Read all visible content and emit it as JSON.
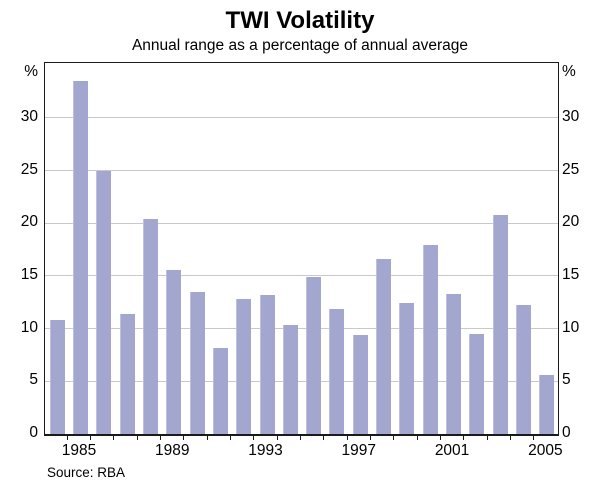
{
  "figure": {
    "title": "TWI Volatility",
    "subtitle": "Annual range as a percentage of annual average",
    "source": "Source: RBA",
    "left_axis_unit": "%",
    "right_axis_unit": "%"
  },
  "chart_data": {
    "type": "bar",
    "title": "TWI Volatility",
    "subtitle": "Annual range as a percentage of annual average",
    "categories": [
      "1984",
      "1985",
      "1986",
      "1987",
      "1988",
      "1989",
      "1990",
      "1991",
      "1992",
      "1993",
      "1994",
      "1995",
      "1996",
      "1997",
      "1998",
      "1999",
      "2000",
      "2001",
      "2002",
      "2003",
      "2004",
      "2005"
    ],
    "values": [
      10.8,
      33.5,
      25.0,
      11.4,
      20.4,
      15.6,
      13.5,
      8.2,
      12.8,
      13.2,
      10.3,
      14.9,
      11.9,
      9.4,
      16.6,
      12.4,
      17.9,
      13.3,
      9.5,
      20.8,
      12.2,
      5.6
    ],
    "xlabel": "",
    "ylabel": "%",
    "ylim": [
      0,
      35.2
    ],
    "yticks": [
      0,
      5,
      10,
      15,
      20,
      25,
      30
    ],
    "labeled_years": [
      "1985",
      "1989",
      "1993",
      "1997",
      "2001",
      "2005"
    ],
    "grid": true,
    "legend_position": "none",
    "bar_color": "#a3a7d0",
    "gridline_color": "#c9c9c9",
    "axis_color": "#1a1a1a",
    "source": "Source: RBA"
  }
}
